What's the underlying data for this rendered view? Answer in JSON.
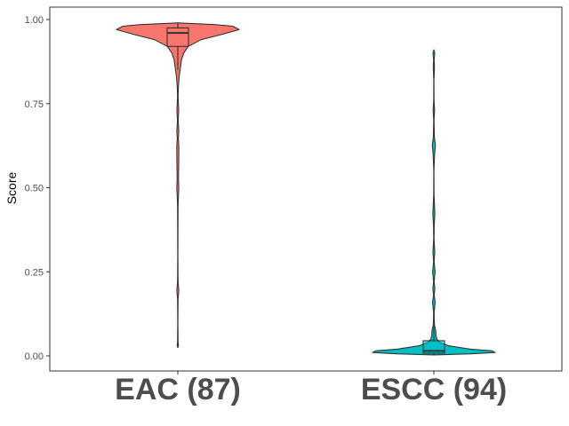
{
  "chart_data": {
    "type": "violin",
    "title": "",
    "xlabel": "",
    "ylabel": "Score",
    "ylim": [
      0,
      1
    ],
    "yticks": [
      0.0,
      0.25,
      0.5,
      0.75,
      1.0
    ],
    "ytick_labels": [
      "0.00",
      "0.25",
      "0.50",
      "0.75",
      "1.00"
    ],
    "categories": [
      "EAC (87)",
      "ESCC (94)"
    ],
    "grid": false,
    "series": [
      {
        "category": "EAC (87)",
        "fill": "#F8766D",
        "range": [
          0.025,
          0.99
        ],
        "box": {
          "min": 0.85,
          "q1": 0.92,
          "median": 0.96,
          "q3": 0.975,
          "max": 0.99
        },
        "density": [
          [
            0.025,
            0.002
          ],
          [
            0.03,
            0.012
          ],
          [
            0.04,
            0.004
          ],
          [
            0.1,
            0.002
          ],
          [
            0.17,
            0.004
          ],
          [
            0.195,
            0.016
          ],
          [
            0.22,
            0.004
          ],
          [
            0.3,
            0.002
          ],
          [
            0.45,
            0.004
          ],
          [
            0.5,
            0.016
          ],
          [
            0.53,
            0.01
          ],
          [
            0.57,
            0.014
          ],
          [
            0.62,
            0.018
          ],
          [
            0.645,
            0.008
          ],
          [
            0.67,
            0.016
          ],
          [
            0.7,
            0.006
          ],
          [
            0.73,
            0.014
          ],
          [
            0.77,
            0.004
          ],
          [
            0.8,
            0.008
          ],
          [
            0.83,
            0.022
          ],
          [
            0.86,
            0.045
          ],
          [
            0.88,
            0.06
          ],
          [
            0.9,
            0.095
          ],
          [
            0.92,
            0.17
          ],
          [
            0.94,
            0.38
          ],
          [
            0.955,
            0.7
          ],
          [
            0.97,
            1.0
          ],
          [
            0.98,
            0.9
          ],
          [
            0.985,
            0.6
          ],
          [
            0.99,
            0.0
          ]
        ]
      },
      {
        "category": "ESCC (94)",
        "fill": "#00BFC4",
        "range": [
          0.003,
          0.91
        ],
        "box": {
          "min": 0.003,
          "q1": 0.008,
          "median": 0.015,
          "q3": 0.045,
          "max": 0.09
        },
        "density": [
          [
            0.003,
            0.0
          ],
          [
            0.006,
            0.6
          ],
          [
            0.01,
            1.0
          ],
          [
            0.015,
            0.95
          ],
          [
            0.02,
            0.6
          ],
          [
            0.03,
            0.24
          ],
          [
            0.04,
            0.1
          ],
          [
            0.05,
            0.05
          ],
          [
            0.06,
            0.035
          ],
          [
            0.075,
            0.03
          ],
          [
            0.09,
            0.012
          ],
          [
            0.11,
            0.006
          ],
          [
            0.13,
            0.004
          ],
          [
            0.16,
            0.022
          ],
          [
            0.18,
            0.006
          ],
          [
            0.2,
            0.016
          ],
          [
            0.22,
            0.004
          ],
          [
            0.25,
            0.02
          ],
          [
            0.28,
            0.004
          ],
          [
            0.31,
            0.014
          ],
          [
            0.35,
            0.003
          ],
          [
            0.39,
            0.006
          ],
          [
            0.42,
            0.016
          ],
          [
            0.45,
            0.01
          ],
          [
            0.48,
            0.003
          ],
          [
            0.55,
            0.002
          ],
          [
            0.6,
            0.012
          ],
          [
            0.625,
            0.026
          ],
          [
            0.65,
            0.008
          ],
          [
            0.7,
            0.003
          ],
          [
            0.73,
            0.012
          ],
          [
            0.76,
            0.003
          ],
          [
            0.82,
            0.002
          ],
          [
            0.86,
            0.01
          ],
          [
            0.88,
            0.004
          ],
          [
            0.9,
            0.014
          ],
          [
            0.91,
            0.0
          ]
        ]
      }
    ]
  }
}
